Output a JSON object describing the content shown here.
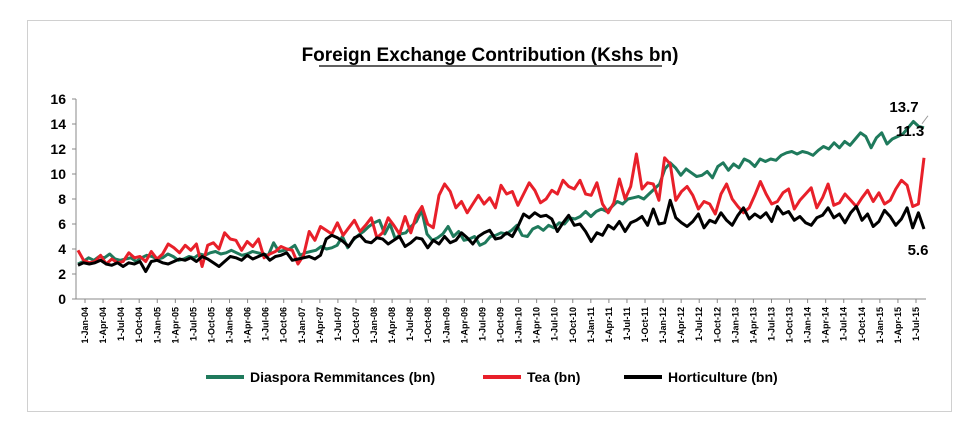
{
  "chart_data": {
    "type": "line",
    "title": "Foreign Exchange Contribution  (Kshs bn)",
    "xlabel": "",
    "ylabel": "",
    "ylim": [
      0,
      16
    ],
    "yticks": [
      0,
      2,
      4,
      6,
      8,
      10,
      12,
      14,
      16
    ],
    "grid": false,
    "legend_position": "bottom",
    "x_tick_labels": [
      "1-Jan-04",
      "1-Apr-04",
      "1-Jul-04",
      "1-Oct-04",
      "1-Jan-05",
      "1-Apr-05",
      "1-Jul-05",
      "1-Oct-05",
      "1-Jan-06",
      "1-Apr-06",
      "1-Jul-06",
      "1-Oct-06",
      "1-Jan-07",
      "1-Apr-07",
      "1-Jul-07",
      "1-Oct-07",
      "1-Jan-08",
      "1-Apr-08",
      "1-Jul-08",
      "1-Oct-08",
      "1-Jan-09",
      "1-Apr-09",
      "1-Jul-09",
      "1-Oct-09",
      "1-Jan-10",
      "1-Apr-10",
      "1-Jul-10",
      "1-Oct-10",
      "1-Jan-11",
      "1-Apr-11",
      "1-Jul-11",
      "1-Oct-11",
      "1-Jan-12",
      "1-Apr-12",
      "1-Jul-12",
      "1-Oct-12",
      "1-Jan-13",
      "1-Apr-13",
      "1-Jul-13",
      "1-Oct-13",
      "1-Jan-14",
      "1-Apr-14",
      "1-Jul-14",
      "1-Oct-14",
      "1-Jan-15",
      "1-Apr-15",
      "1-Jul-15"
    ],
    "series": [
      {
        "name": "Diaspora Remmitances (bn)",
        "color": "#1f7a5c",
        "values": [
          2.8,
          3.0,
          3.3,
          3.1,
          3.4,
          3.3,
          3.6,
          3.2,
          3.1,
          3.2,
          3.3,
          3.0,
          3.3,
          3.5,
          3.4,
          3.2,
          3.3,
          3.6,
          3.4,
          3.1,
          3.2,
          3.4,
          3.3,
          3.6,
          3.5,
          3.7,
          3.8,
          3.6,
          3.7,
          3.9,
          3.7,
          3.5,
          3.6,
          3.8,
          3.7,
          3.6,
          3.5,
          4.5,
          3.8,
          3.9,
          4.0,
          4.3,
          3.5,
          3.7,
          3.8,
          3.9,
          4.2,
          4.0,
          4.1,
          4.3,
          5.0,
          4.1,
          4.7,
          5.1,
          5.4,
          5.8,
          6.1,
          6.3,
          5.2,
          6.0,
          4.8,
          5.2,
          5.3,
          5.8,
          6.2,
          7.1,
          5.2,
          4.7,
          4.9,
          5.2,
          5.8,
          5.0,
          5.4,
          4.7,
          4.8,
          5.0,
          4.3,
          4.5,
          5.0,
          5.1,
          5.3,
          5.2,
          5.5,
          5.9,
          5.1,
          5.0,
          5.6,
          5.8,
          5.5,
          5.9,
          5.7,
          6.1,
          6.0,
          6.5,
          6.4,
          6.6,
          7.0,
          6.6,
          7.0,
          7.2,
          7.0,
          7.4,
          7.8,
          7.6,
          8.0,
          8.1,
          8.2,
          8.0,
          8.4,
          8.8,
          9.2,
          10.4,
          10.9,
          10.5,
          9.9,
          10.4,
          10.1,
          9.8,
          9.9,
          10.2,
          9.7,
          10.6,
          10.9,
          10.3,
          10.8,
          10.5,
          11.2,
          11.0,
          10.6,
          11.2,
          11.0,
          11.2,
          11.1,
          11.5,
          11.7,
          11.8,
          11.6,
          11.8,
          11.7,
          11.5,
          11.9,
          12.2,
          12.0,
          12.5,
          12.1,
          12.6,
          12.3,
          12.8,
          13.3,
          13.0,
          12.1,
          12.9,
          13.3,
          12.4,
          12.8,
          13.0,
          13.2,
          13.7,
          14.2,
          13.8,
          13.7
        ]
      },
      {
        "name": "Tea (bn)",
        "color": "#e8202a",
        "values": [
          3.9,
          3.1,
          2.9,
          3.0,
          3.5,
          2.8,
          3.2,
          2.9,
          3.0,
          3.7,
          3.3,
          3.4,
          3.0,
          3.8,
          3.2,
          3.6,
          4.4,
          4.1,
          3.7,
          4.3,
          3.9,
          4.4,
          2.6,
          4.3,
          4.5,
          4.0,
          5.3,
          4.8,
          4.7,
          3.9,
          4.6,
          4.2,
          4.8,
          3.3,
          3.6,
          3.8,
          4.2,
          4.0,
          3.9,
          2.8,
          3.5,
          5.4,
          4.7,
          5.8,
          5.5,
          5.2,
          6.1,
          5.1,
          5.7,
          6.3,
          5.4,
          5.9,
          6.5,
          4.9,
          5.3,
          6.5,
          5.9,
          5.2,
          6.6,
          5.3,
          6.7,
          7.4,
          6.0,
          5.7,
          8.3,
          9.2,
          8.6,
          7.3,
          7.8,
          6.9,
          7.6,
          8.3,
          7.6,
          8.1,
          7.3,
          9.1,
          8.4,
          8.6,
          7.5,
          8.4,
          9.3,
          8.7,
          7.7,
          8.0,
          8.7,
          8.4,
          9.5,
          9.0,
          8.8,
          9.5,
          8.4,
          8.3,
          9.3,
          7.6,
          6.9,
          7.7,
          9.6,
          8.0,
          9.0,
          11.6,
          8.8,
          9.3,
          9.2,
          7.9,
          11.3,
          10.8,
          7.9,
          8.6,
          9.0,
          8.3,
          7.2,
          7.8,
          7.6,
          6.8,
          8.4,
          9.2,
          8.0,
          7.4,
          6.9,
          7.3,
          8.3,
          9.4,
          8.4,
          7.6,
          7.8,
          8.5,
          8.8,
          7.2,
          7.9,
          8.4,
          8.9,
          7.3,
          8.1,
          9.2,
          7.5,
          7.7,
          8.4,
          7.9,
          7.4,
          8.1,
          8.7,
          7.8,
          8.5,
          7.6,
          7.9,
          8.8,
          9.5,
          9.1,
          7.4,
          7.6,
          11.3
        ]
      },
      {
        "name": "Horticulture (bn)",
        "color": "#000000",
        "values": [
          2.7,
          2.9,
          2.8,
          2.9,
          3.1,
          2.8,
          2.7,
          2.9,
          2.6,
          2.9,
          2.8,
          3.0,
          2.2,
          3.0,
          3.1,
          2.9,
          2.8,
          3.0,
          3.2,
          3.1,
          3.3,
          3.0,
          3.4,
          3.2,
          2.9,
          2.6,
          3.0,
          3.4,
          3.3,
          3.1,
          3.5,
          3.2,
          3.4,
          3.6,
          3.1,
          3.4,
          3.5,
          3.7,
          3.1,
          3.2,
          3.3,
          3.4,
          3.2,
          3.5,
          4.8,
          5.1,
          4.9,
          4.6,
          4.2,
          4.9,
          5.1,
          4.6,
          4.5,
          4.9,
          4.8,
          4.4,
          4.7,
          5.0,
          4.2,
          4.5,
          4.9,
          4.8,
          4.1,
          4.7,
          4.4,
          5.0,
          4.5,
          4.7,
          5.3,
          4.9,
          4.4,
          5.0,
          5.3,
          5.5,
          4.8,
          4.9,
          5.3,
          5.0,
          5.8,
          6.8,
          6.5,
          6.9,
          6.6,
          6.7,
          6.4,
          5.4,
          6.1,
          6.7,
          5.9,
          6.0,
          5.4,
          4.6,
          5.3,
          5.1,
          5.9,
          5.6,
          6.2,
          5.4,
          6.1,
          6.3,
          6.6,
          5.9,
          7.2,
          6.0,
          6.1,
          7.9,
          6.5,
          6.1,
          5.8,
          6.2,
          6.8,
          5.7,
          6.3,
          6.1,
          6.9,
          6.3,
          5.9,
          6.7,
          7.3,
          6.4,
          6.8,
          6.5,
          6.9,
          6.2,
          7.4,
          6.8,
          7.0,
          6.3,
          6.6,
          6.1,
          5.9,
          6.5,
          6.7,
          7.3,
          6.5,
          6.8,
          6.1,
          6.9,
          7.4,
          6.3,
          6.8,
          5.8,
          6.2,
          7.1,
          6.6,
          5.9,
          6.4,
          7.3,
          5.7,
          6.9,
          5.6
        ]
      }
    ],
    "annotations": [
      {
        "text": "13.7",
        "series": 0
      },
      {
        "text": "11.3",
        "series": 1
      },
      {
        "text": "5.6",
        "series": 2
      }
    ]
  }
}
